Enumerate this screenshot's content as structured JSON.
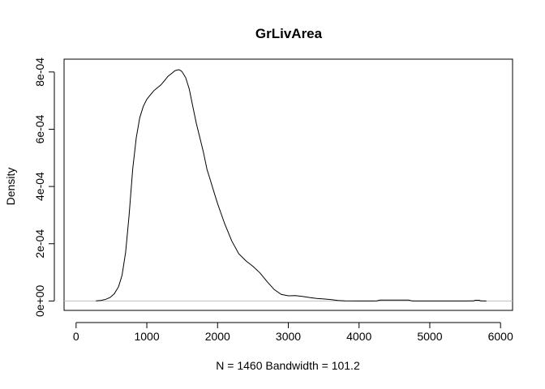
{
  "chart_data": {
    "type": "line",
    "title": "GrLivArea",
    "xlabel": "N = 1460   Bandwidth = 101.2",
    "ylabel": "Density",
    "xlim": [
      -170,
      6170
    ],
    "ylim": [
      -3.29e-05,
      0.0008448
    ],
    "x_ticks": [
      0,
      1000,
      2000,
      3000,
      4000,
      5000,
      6000
    ],
    "x_tick_labels": [
      "0",
      "1000",
      "2000",
      "3000",
      "4000",
      "5000",
      "6000"
    ],
    "y_ticks": [
      0,
      0.0002,
      0.0004,
      0.0006,
      0.0008
    ],
    "y_tick_labels": [
      "0e+00",
      "2e-04",
      "4e-04",
      "6e-04",
      "8e-04"
    ],
    "zero_line_color": "#bebebe",
    "line_color": "#000000",
    "series": [
      {
        "x": [
          280,
          350,
          420,
          480,
          540,
          600,
          650,
          700,
          750,
          800,
          850,
          900,
          950,
          1000,
          1050,
          1100,
          1150,
          1200,
          1250,
          1300,
          1350,
          1400,
          1450,
          1480,
          1500,
          1550,
          1600,
          1650,
          1700,
          1750,
          1800,
          1850,
          1900,
          1950,
          2000,
          2100,
          2200,
          2300,
          2400,
          2500,
          2600,
          2700,
          2800,
          2900,
          3000,
          3100,
          3200,
          3300,
          3400,
          3500,
          3600,
          3700,
          3750,
          3800,
          4000,
          4200,
          4250,
          4300,
          4700,
          4750,
          4800,
          5000,
          5500,
          5620,
          5640,
          5700,
          5720,
          5800
        ],
        "values": [
          2e-07,
          2e-06,
          6e-06,
          1.2e-05,
          2.5e-05,
          5e-05,
          9e-05,
          0.00017,
          0.0003,
          0.00046,
          0.00057,
          0.00064,
          0.00068,
          0.000705,
          0.00072,
          0.000735,
          0.000745,
          0.000755,
          0.00077,
          0.000785,
          0.000795,
          0.000805,
          0.000808,
          0.000805,
          0.0008,
          0.00078,
          0.00074,
          0.00068,
          0.00062,
          0.00057,
          0.00052,
          0.00046,
          0.00042,
          0.00038,
          0.00034,
          0.00027,
          0.00021,
          0.000165,
          0.00014,
          0.000121,
          9.8e-05,
          6.8e-05,
          4e-05,
          2.3e-05,
          1.8e-05,
          1.9e-05,
          1.6e-05,
          1.2e-05,
          9e-06,
          7e-06,
          5e-06,
          2e-06,
          1e-06,
          3e-07,
          0,
          0,
          2e-07,
          3e-06,
          3e-06,
          2e-07,
          0,
          0,
          0,
          2e-07,
          2.5e-06,
          2.5e-06,
          2e-07,
          0
        ]
      }
    ]
  }
}
